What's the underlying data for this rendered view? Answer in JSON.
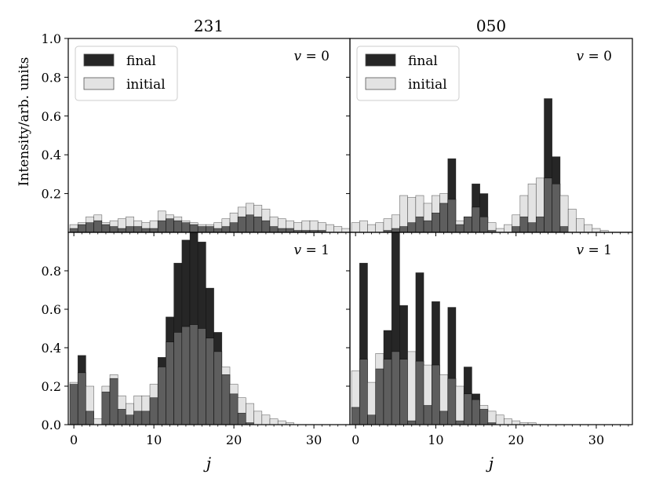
{
  "figure": {
    "ylabel": "Intensity/arb. units",
    "xlabel": "j",
    "column_titles": [
      "231",
      "050"
    ],
    "colors": {
      "final": "#262626",
      "initial": "#e3e3e3",
      "overlap": "#5e5e5e",
      "edge": "#000000"
    }
  },
  "chart_data": [
    {
      "type": "bar",
      "panel": "231 v=0",
      "column_title": "231",
      "annotation": "v = 0",
      "legend": [
        "final",
        "initial"
      ],
      "legend_position": "top-left",
      "ylim": [
        0,
        1.0
      ],
      "yticks": [
        0.2,
        0.4,
        0.6,
        0.8,
        1.0
      ],
      "xlim": [
        -0.7,
        34.5
      ],
      "xticks": [
        0,
        10,
        20,
        30
      ],
      "x": [
        0,
        1,
        2,
        3,
        4,
        5,
        6,
        7,
        8,
        9,
        10,
        11,
        12,
        13,
        14,
        15,
        16,
        17,
        18,
        19,
        20,
        21,
        22,
        23,
        24,
        25,
        26,
        27,
        28,
        29,
        30,
        31,
        32,
        33,
        34
      ],
      "series": [
        {
          "name": "final",
          "values": [
            0.02,
            0.04,
            0.05,
            0.06,
            0.04,
            0.03,
            0.02,
            0.03,
            0.03,
            0.02,
            0.02,
            0.06,
            0.07,
            0.06,
            0.05,
            0.04,
            0.03,
            0.03,
            0.02,
            0.03,
            0.05,
            0.08,
            0.09,
            0.08,
            0.06,
            0.03,
            0.02,
            0.02,
            0.01,
            0.01,
            0.01,
            0.01,
            0.0,
            0.0,
            0.0
          ]
        },
        {
          "name": "initial",
          "values": [
            0.04,
            0.05,
            0.08,
            0.09,
            0.05,
            0.06,
            0.07,
            0.08,
            0.06,
            0.05,
            0.06,
            0.11,
            0.09,
            0.08,
            0.06,
            0.05,
            0.04,
            0.04,
            0.05,
            0.07,
            0.1,
            0.13,
            0.15,
            0.14,
            0.12,
            0.08,
            0.07,
            0.06,
            0.05,
            0.06,
            0.06,
            0.05,
            0.04,
            0.03,
            0.02
          ]
        }
      ]
    },
    {
      "type": "bar",
      "panel": "050 v=0",
      "column_title": "050",
      "annotation": "v = 0",
      "legend": [
        "final",
        "initial"
      ],
      "legend_position": "top-left",
      "ylim": [
        0,
        1.0
      ],
      "yticks": [
        0.2,
        0.4,
        0.6,
        0.8,
        1.0
      ],
      "xlim": [
        -0.7,
        34.5
      ],
      "xticks": [
        0,
        10,
        20,
        30
      ],
      "x": [
        0,
        1,
        2,
        3,
        4,
        5,
        6,
        7,
        8,
        9,
        10,
        11,
        12,
        13,
        14,
        15,
        16,
        17,
        18,
        19,
        20,
        21,
        22,
        23,
        24,
        25,
        26,
        27,
        28,
        29,
        30,
        31,
        32,
        33,
        34
      ],
      "series": [
        {
          "name": "final",
          "values": [
            0.0,
            0.0,
            0.0,
            0.0,
            0.01,
            0.02,
            0.03,
            0.05,
            0.08,
            0.06,
            0.1,
            0.15,
            0.38,
            0.04,
            0.08,
            0.25,
            0.2,
            0.01,
            0.0,
            0.0,
            0.03,
            0.08,
            0.05,
            0.08,
            0.69,
            0.39,
            0.03,
            0.0,
            0.0,
            0.0,
            0.0,
            0.0,
            0.0,
            0.0,
            0.0
          ]
        },
        {
          "name": "initial",
          "values": [
            0.05,
            0.06,
            0.04,
            0.05,
            0.07,
            0.09,
            0.19,
            0.18,
            0.19,
            0.15,
            0.19,
            0.2,
            0.17,
            0.06,
            0.08,
            0.13,
            0.08,
            0.05,
            0.02,
            0.04,
            0.09,
            0.19,
            0.25,
            0.28,
            0.28,
            0.25,
            0.19,
            0.12,
            0.07,
            0.04,
            0.02,
            0.01,
            0.0,
            0.0,
            0.0
          ]
        }
      ]
    },
    {
      "type": "bar",
      "panel": "231 v=1",
      "column_title": "231",
      "annotation": "v = 1",
      "ylim": [
        0,
        1.0
      ],
      "yticks": [
        0.0,
        0.2,
        0.4,
        0.6,
        0.8
      ],
      "xlim": [
        -0.7,
        34.5
      ],
      "xticks": [
        0,
        10,
        20,
        30
      ],
      "xlabel": "j",
      "x": [
        0,
        1,
        2,
        3,
        4,
        5,
        6,
        7,
        8,
        9,
        10,
        11,
        12,
        13,
        14,
        15,
        16,
        17,
        18,
        19,
        20,
        21,
        22,
        23,
        24,
        25,
        26,
        27,
        28,
        29,
        30,
        31,
        32,
        33,
        34
      ],
      "series": [
        {
          "name": "final",
          "values": [
            0.21,
            0.36,
            0.07,
            0.0,
            0.17,
            0.24,
            0.08,
            0.05,
            0.07,
            0.07,
            0.14,
            0.35,
            0.56,
            0.84,
            0.96,
            1.0,
            0.95,
            0.71,
            0.48,
            0.26,
            0.16,
            0.06,
            0.01,
            0.0,
            0.0,
            0.0,
            0.0,
            0.0,
            0.0,
            0.0,
            0.0,
            0.0,
            0.0,
            0.0,
            0.0
          ]
        },
        {
          "name": "initial",
          "values": [
            0.22,
            0.27,
            0.2,
            0.03,
            0.2,
            0.26,
            0.15,
            0.11,
            0.15,
            0.15,
            0.21,
            0.3,
            0.43,
            0.48,
            0.51,
            0.52,
            0.5,
            0.45,
            0.38,
            0.3,
            0.21,
            0.14,
            0.11,
            0.07,
            0.05,
            0.03,
            0.02,
            0.01,
            0.0,
            0.0,
            0.0,
            0.0,
            0.0,
            0.0,
            0.0
          ]
        }
      ]
    },
    {
      "type": "bar",
      "panel": "050 v=1",
      "column_title": "050",
      "annotation": "v = 1",
      "ylim": [
        0,
        1.0
      ],
      "yticks": [
        0.0,
        0.2,
        0.4,
        0.6,
        0.8
      ],
      "xlim": [
        -0.7,
        34.5
      ],
      "xticks": [
        0,
        10,
        20,
        30
      ],
      "xlabel": "j",
      "x": [
        0,
        1,
        2,
        3,
        4,
        5,
        6,
        7,
        8,
        9,
        10,
        11,
        12,
        13,
        14,
        15,
        16,
        17,
        18,
        19,
        20,
        21,
        22,
        23,
        24,
        25,
        26,
        27,
        28,
        29,
        30,
        31,
        32,
        33,
        34
      ],
      "series": [
        {
          "name": "final",
          "values": [
            0.09,
            0.84,
            0.05,
            0.29,
            0.49,
            1.0,
            0.62,
            0.02,
            0.79,
            0.1,
            0.64,
            0.07,
            0.61,
            0.02,
            0.3,
            0.16,
            0.08,
            0.01,
            0.0,
            0.0,
            0.0,
            0.0,
            0.0,
            0.0,
            0.0,
            0.0,
            0.0,
            0.0,
            0.0,
            0.0,
            0.0,
            0.0,
            0.0,
            0.0,
            0.0
          ]
        },
        {
          "name": "initial",
          "values": [
            0.28,
            0.34,
            0.22,
            0.37,
            0.34,
            0.38,
            0.34,
            0.38,
            0.33,
            0.31,
            0.31,
            0.26,
            0.24,
            0.2,
            0.16,
            0.13,
            0.1,
            0.07,
            0.05,
            0.03,
            0.02,
            0.01,
            0.01,
            0.0,
            0.0,
            0.0,
            0.0,
            0.0,
            0.0,
            0.0,
            0.0,
            0.0,
            0.0,
            0.0,
            0.0
          ]
        }
      ]
    }
  ]
}
